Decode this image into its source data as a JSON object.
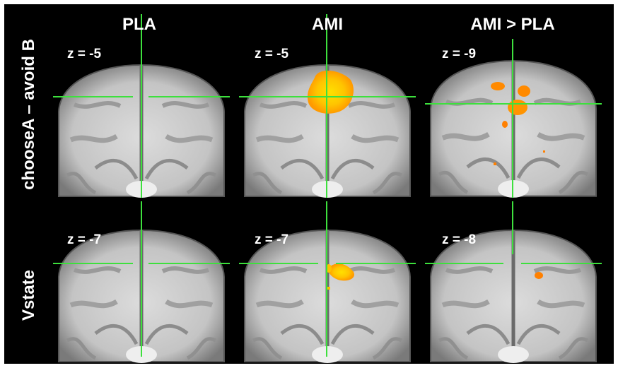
{
  "columns": [
    "PLA",
    "AMI",
    "AMI > PLA"
  ],
  "rows": [
    {
      "label": "chooseA – avoid B",
      "panels": [
        "z = -5",
        "z = -5",
        "z = -9"
      ]
    },
    {
      "label": "Vstate",
      "panels": [
        "z = -7",
        "z = -7",
        "z = -8"
      ]
    }
  ]
}
